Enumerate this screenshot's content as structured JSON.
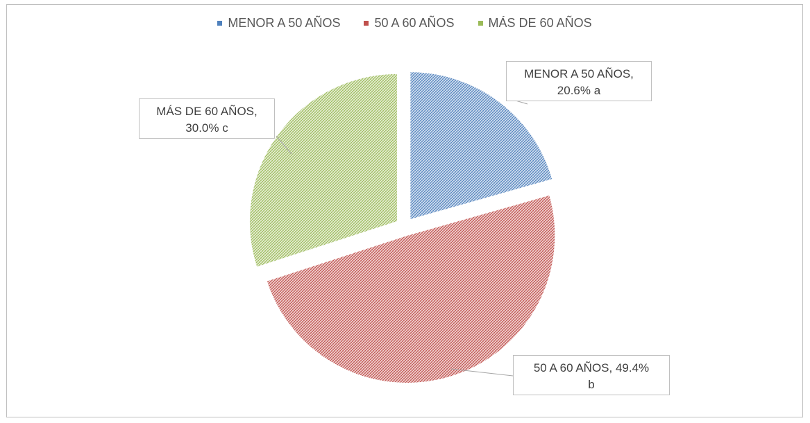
{
  "chart_data": {
    "type": "pie",
    "title": "",
    "legend_position": "top",
    "categories": [
      "MENOR A 50 AÑOS",
      "50 A 60 AÑOS",
      "MÁS DE 60 AÑOS"
    ],
    "values": [
      20.6,
      49.4,
      30.0
    ],
    "colors": [
      "#4f81bd",
      "#c0504d",
      "#9bbb59"
    ],
    "fills": [
      "#dce6f2",
      "#f2dcdb",
      "#ebf1de"
    ],
    "exploded": true,
    "pattern": "diagonal-hatch",
    "data_labels": [
      {
        "name": "MENOR  A 50 AÑOS,",
        "value": "20.6% a"
      },
      {
        "name": "50 A 60 AÑOS,  49.4%",
        "value": "b"
      },
      {
        "name": "MÁS DE 60 AÑOS,",
        "value": "30.0% c"
      }
    ]
  }
}
